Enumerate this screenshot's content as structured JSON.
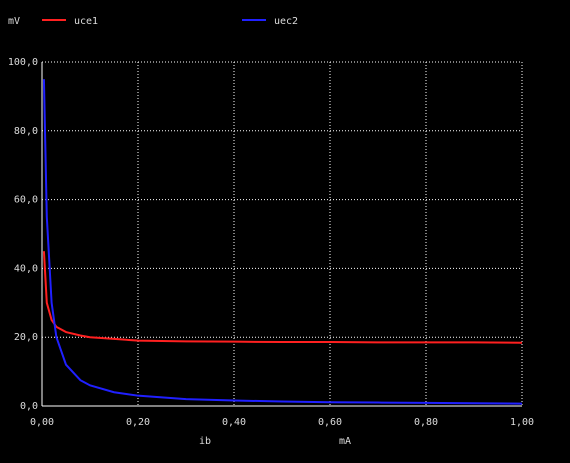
{
  "chart_data": {
    "type": "line",
    "y_unit": "mV",
    "x_label": "ib",
    "x_unit": "mA",
    "x": [
      0.004,
      0.01,
      0.02,
      0.03,
      0.05,
      0.08,
      0.1,
      0.15,
      0.2,
      0.3,
      0.4,
      0.5,
      0.6,
      0.7,
      0.8,
      0.9,
      1.0
    ],
    "series": [
      {
        "name": "uce1",
        "color": "#ff2020",
        "values": [
          45,
          30,
          25,
          23,
          21.5,
          20.5,
          20,
          19.5,
          19,
          18.8,
          18.7,
          18.6,
          18.6,
          18.5,
          18.5,
          18.5,
          18.4
        ]
      },
      {
        "name": "uec2",
        "color": "#2020ff",
        "values": [
          95,
          55,
          30,
          20,
          12,
          7.5,
          6,
          4,
          3,
          2,
          1.6,
          1.3,
          1.1,
          1,
          0.9,
          0.8,
          0.7
        ]
      }
    ],
    "xlim": [
      0,
      1
    ],
    "xticks": [
      {
        "value": 0,
        "label": "0,00"
      },
      {
        "value": 0.2,
        "label": "0,20"
      },
      {
        "value": 0.4,
        "label": "0,40"
      },
      {
        "value": 0.6,
        "label": "0,60"
      },
      {
        "value": 0.8,
        "label": "0,80"
      },
      {
        "value": 1,
        "label": "1,00"
      }
    ],
    "ylim": [
      0,
      100
    ],
    "yticks": [
      {
        "value": 0,
        "label": "0,0"
      },
      {
        "value": 20,
        "label": "20,0"
      },
      {
        "value": 40,
        "label": "40,0"
      },
      {
        "value": 60,
        "label": "60,0"
      },
      {
        "value": 80,
        "label": "80,0"
      },
      {
        "value": 100,
        "label": "100,0"
      }
    ],
    "grid": true
  }
}
